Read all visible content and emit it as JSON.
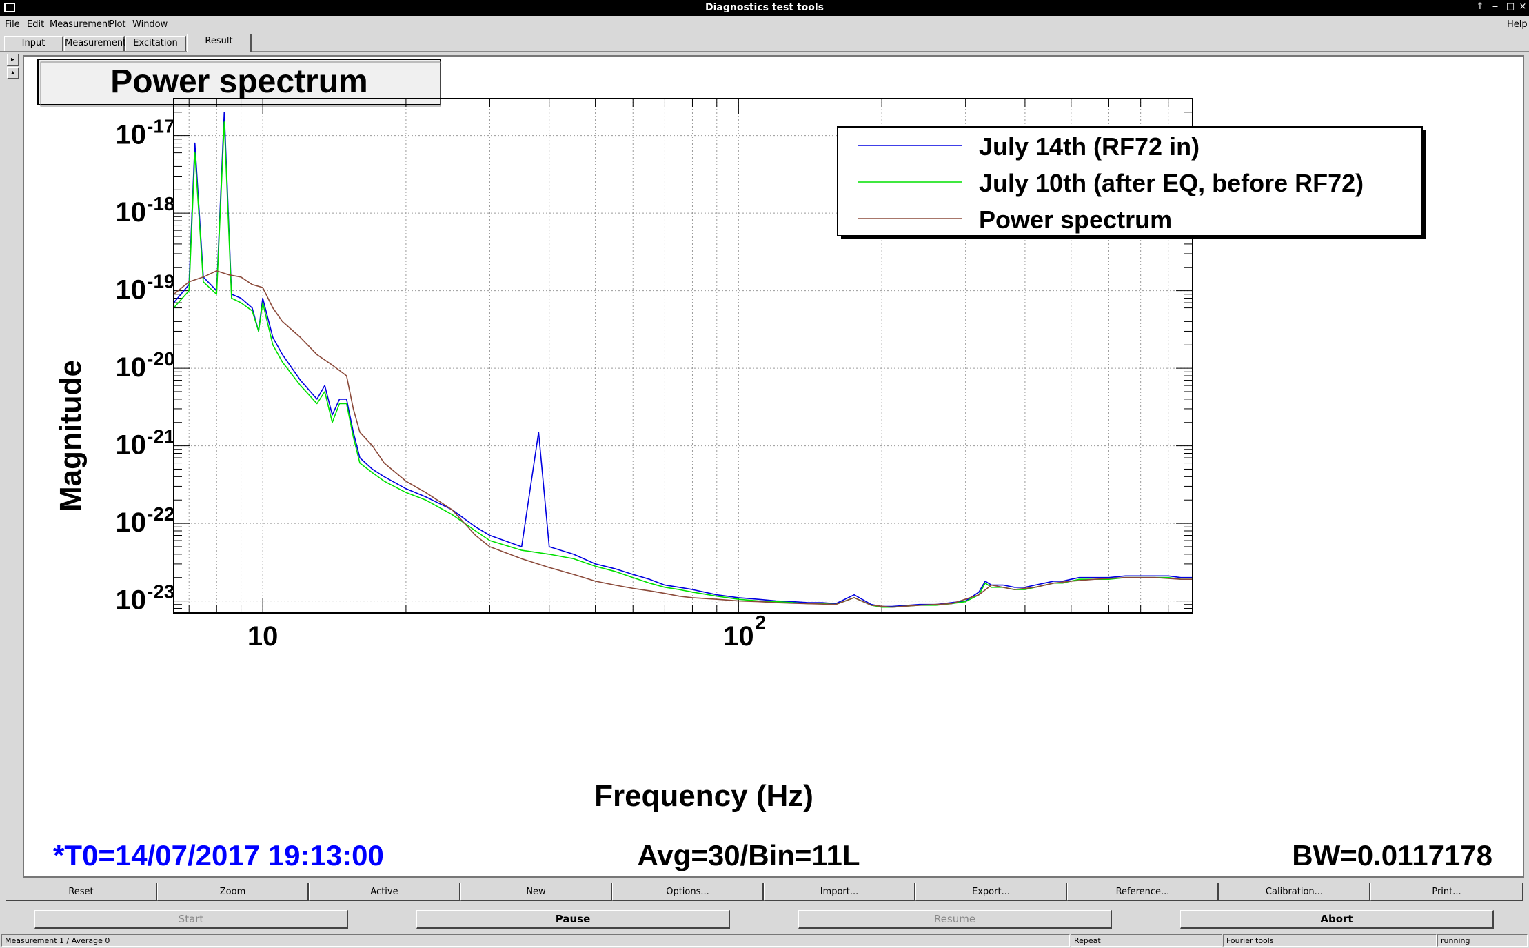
{
  "window": {
    "title": "Diagnostics test tools",
    "controls": [
      "↑",
      "‒",
      "□",
      "×"
    ]
  },
  "menu": {
    "items": [
      "File",
      "Edit",
      "Measurement",
      "Plot",
      "Window"
    ],
    "help": "Help"
  },
  "tabs": [
    {
      "label": "Input"
    },
    {
      "label": "Measurement"
    },
    {
      "label": "Excitation"
    },
    {
      "label": "Result"
    }
  ],
  "side": {
    "up": "▸",
    "down": "▴"
  },
  "plot_panel": {
    "title": "Power spectrum",
    "t0": "*T0=14/07/2017 19:13:00",
    "avg": "Avg=30/Bin=11L",
    "bw": "BW=0.0117178",
    "colors": {
      "blue": "#0000e0",
      "green": "#00e000",
      "brown": "#8b4a3a",
      "t0_text": "#0000ff"
    }
  },
  "chart_data": {
    "type": "line",
    "xlabel": "Frequency (Hz)",
    "ylabel": "Magnitude",
    "xscale": "log",
    "yscale": "log",
    "xlim": [
      6.5,
      900
    ],
    "ylim": [
      7e-24,
      3e-17
    ],
    "xticks": [
      {
        "value": 10,
        "label": "10"
      },
      {
        "value": 100,
        "label": "10",
        "exp": "2"
      }
    ],
    "yticks": [
      {
        "value": 1e-17,
        "label": "10",
        "exp": "-17"
      },
      {
        "value": 1e-18,
        "label": "10",
        "exp": "-18"
      },
      {
        "value": 1e-19,
        "label": "10",
        "exp": "-19"
      },
      {
        "value": 1e-20,
        "label": "10",
        "exp": "-20"
      },
      {
        "value": 1e-21,
        "label": "10",
        "exp": "-21"
      },
      {
        "value": 1e-22,
        "label": "10",
        "exp": "-22"
      },
      {
        "value": 1e-23,
        "label": "10",
        "exp": "-23"
      }
    ],
    "grid": true,
    "legend_position": "top-right",
    "series": [
      {
        "name": "July 14th (RF72 in)",
        "color": "#0000e0",
        "x": [
          6.5,
          7.0,
          7.2,
          7.5,
          8.0,
          8.3,
          8.6,
          9.0,
          9.5,
          9.8,
          10.0,
          10.5,
          11.0,
          12.0,
          13.0,
          13.5,
          14.0,
          14.5,
          15.0,
          15.5,
          16.0,
          17.0,
          18.0,
          20.0,
          22.0,
          25.0,
          28.0,
          30.0,
          35.0,
          38.0,
          40.0,
          45.0,
          50.0,
          55.0,
          60.0,
          65.0,
          70.0,
          75.0,
          80.0,
          90.0,
          100.0,
          110.0,
          120.0,
          130.0,
          140.0,
          150.0,
          160.0,
          175.0,
          190.0,
          200.0,
          210.0,
          240.0,
          260.0,
          280.0,
          300.0,
          320.0,
          330.0,
          340.0,
          360.0,
          380.0,
          400.0,
          420.0,
          440.0,
          460.0,
          480.0,
          500.0,
          520.0,
          560.0,
          600.0,
          650.0,
          700.0,
          750.0,
          800.0,
          850.0,
          900.0
        ],
        "y": [
          7e-20,
          1.2e-19,
          8e-18,
          1.5e-19,
          1e-19,
          2e-17,
          9e-20,
          8e-20,
          6e-20,
          3e-20,
          8e-20,
          2.5e-20,
          1.5e-20,
          7e-21,
          4e-21,
          6e-21,
          2.5e-21,
          4e-21,
          4e-21,
          1.5e-21,
          7e-22,
          5e-22,
          4e-22,
          2.8e-22,
          2.2e-22,
          1.5e-22,
          9e-23,
          7e-23,
          5e-23,
          1.5e-21,
          5e-23,
          4e-23,
          3e-23,
          2.6e-23,
          2.2e-23,
          1.9e-23,
          1.6e-23,
          1.5e-23,
          1.4e-23,
          1.2e-23,
          1.1e-23,
          1.05e-23,
          1e-23,
          9.8e-24,
          9.5e-24,
          9.5e-24,
          9.2e-24,
          1.2e-23,
          9e-24,
          8.5e-24,
          8.5e-24,
          9e-24,
          9e-24,
          9.5e-24,
          1e-23,
          1.3e-23,
          1.8e-23,
          1.6e-23,
          1.6e-23,
          1.5e-23,
          1.5e-23,
          1.6e-23,
          1.7e-23,
          1.8e-23,
          1.8e-23,
          1.9e-23,
          2e-23,
          2e-23,
          2e-23,
          2.1e-23,
          2.1e-23,
          2.1e-23,
          2.1e-23,
          2e-23,
          2e-23
        ]
      },
      {
        "name": "July 10th (after EQ, before RF72)",
        "color": "#00e000",
        "x": [
          6.5,
          7.0,
          7.2,
          7.5,
          8.0,
          8.3,
          8.6,
          9.0,
          9.5,
          9.8,
          10.0,
          10.5,
          11.0,
          12.0,
          13.0,
          13.5,
          14.0,
          14.5,
          15.0,
          15.5,
          16.0,
          17.0,
          18.0,
          20.0,
          22.0,
          25.0,
          28.0,
          30.0,
          35.0,
          40.0,
          45.0,
          50.0,
          55.0,
          60.0,
          65.0,
          70.0,
          75.0,
          80.0,
          90.0,
          100.0,
          110.0,
          120.0,
          130.0,
          140.0,
          150.0,
          160.0,
          175.0,
          190.0,
          200.0,
          210.0,
          240.0,
          260.0,
          280.0,
          300.0,
          320.0,
          330.0,
          340.0,
          360.0,
          380.0,
          400.0,
          420.0,
          440.0,
          460.0,
          480.0,
          500.0,
          520.0,
          560.0,
          600.0,
          650.0,
          700.0,
          750.0,
          800.0,
          850.0,
          900.0
        ],
        "y": [
          6e-20,
          1e-19,
          6e-18,
          1.3e-19,
          9e-20,
          1.5e-17,
          8e-20,
          7e-20,
          5.5e-20,
          3e-20,
          7e-20,
          2e-20,
          1.2e-20,
          6e-21,
          3.5e-21,
          5e-21,
          2e-21,
          3.5e-21,
          3.5e-21,
          1.3e-21,
          6e-22,
          4.5e-22,
          3.5e-22,
          2.5e-22,
          2e-22,
          1.3e-22,
          8e-23,
          6e-23,
          4.5e-23,
          4e-23,
          3.5e-23,
          2.8e-23,
          2.4e-23,
          2e-23,
          1.7e-23,
          1.5e-23,
          1.4e-23,
          1.3e-23,
          1.15e-23,
          1.05e-23,
          1e-23,
          9.8e-24,
          9.5e-24,
          9.2e-24,
          9.2e-24,
          9e-24,
          1.1e-23,
          8.8e-24,
          8.3e-24,
          8.3e-24,
          8.8e-24,
          8.8e-24,
          9.2e-24,
          9.8e-24,
          1.2e-23,
          1.7e-23,
          1.5e-23,
          1.5e-23,
          1.4e-23,
          1.4e-23,
          1.5e-23,
          1.6e-23,
          1.7e-23,
          1.7e-23,
          1.8e-23,
          1.9e-23,
          1.9e-23,
          1.9e-23,
          2e-23,
          2e-23,
          2e-23,
          2e-23,
          1.9e-23,
          1.9e-23
        ]
      },
      {
        "name": "Power spectrum",
        "color": "#8b4a3a",
        "x": [
          6.5,
          7.0,
          7.5,
          8.0,
          8.5,
          9.0,
          9.5,
          10.0,
          10.5,
          11.0,
          12.0,
          13.0,
          14.0,
          15.0,
          15.5,
          16.0,
          17.0,
          18.0,
          20.0,
          22.0,
          25.0,
          28.0,
          30.0,
          35.0,
          40.0,
          45.0,
          50.0,
          55.0,
          60.0,
          65.0,
          70.0,
          75.0,
          80.0,
          90.0,
          100.0,
          110.0,
          120.0,
          140.0,
          160.0,
          175.0,
          190.0,
          210.0,
          240.0,
          280.0,
          320.0,
          340.0,
          380.0,
          420.0,
          460.0,
          500.0,
          560.0,
          650.0,
          750.0,
          850.0,
          900.0
        ],
        "y": [
          9e-20,
          1.3e-19,
          1.5e-19,
          1.8e-19,
          1.6e-19,
          1.5e-19,
          1.2e-19,
          1.1e-19,
          6e-20,
          4e-20,
          2.5e-20,
          1.5e-20,
          1.1e-20,
          8e-21,
          3e-21,
          1.5e-21,
          1e-21,
          6e-22,
          3.5e-22,
          2.5e-22,
          1.5e-22,
          7e-23,
          5e-23,
          3.5e-23,
          2.7e-23,
          2.2e-23,
          1.8e-23,
          1.6e-23,
          1.45e-23,
          1.35e-23,
          1.25e-23,
          1.15e-23,
          1.1e-23,
          1.05e-23,
          1e-23,
          9.8e-24,
          9.5e-24,
          9.2e-24,
          9e-24,
          1.1e-23,
          8.8e-24,
          8.3e-24,
          8.8e-24,
          9.2e-24,
          1.2e-23,
          1.6e-23,
          1.4e-23,
          1.5e-23,
          1.7e-23,
          1.8e-23,
          1.9e-23,
          2e-23,
          2e-23,
          1.9e-23,
          1.9e-23
        ]
      }
    ]
  },
  "buttons": [
    "Reset",
    "Zoom",
    "Active",
    "New",
    "Options...",
    "Import...",
    "Export...",
    "Reference...",
    "Calibration...",
    "Print..."
  ],
  "controls": [
    {
      "label": "Start",
      "state": "disabled"
    },
    {
      "label": "Pause",
      "state": "bold"
    },
    {
      "label": "Resume",
      "state": "disabled"
    },
    {
      "label": "Abort",
      "state": "bold"
    }
  ],
  "status": {
    "left": "Measurement 1 / Average 0",
    "repeat": "Repeat",
    "mode": "Fourier tools",
    "state": "running"
  }
}
